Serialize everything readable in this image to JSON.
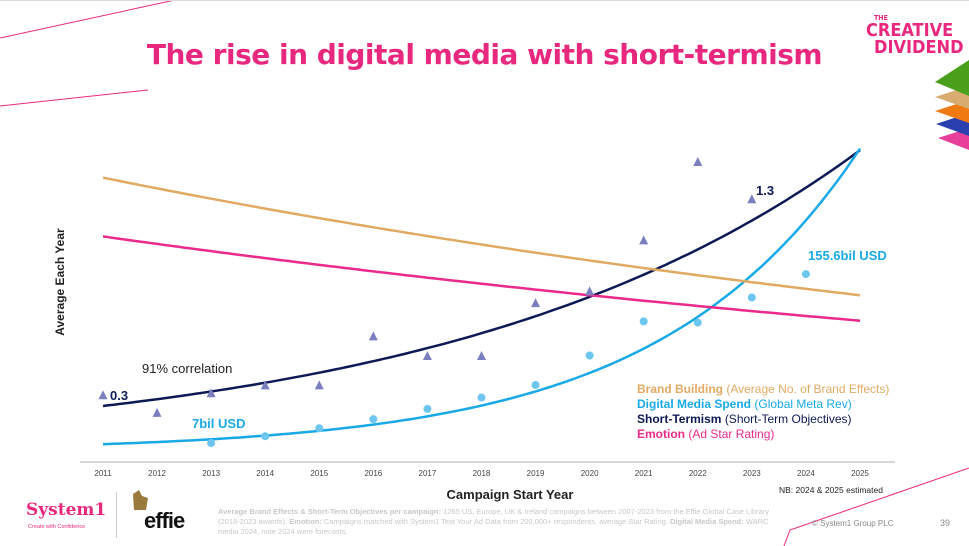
{
  "title": "The rise in digital media with short-termism",
  "brand": {
    "logo_top": "THE",
    "logo_line1": "CREATIVE",
    "logo_line2": "DIVIDEND"
  },
  "chart_data": {
    "type": "scatter",
    "xlabel": "Campaign Start Year",
    "ylabel": "Average Each Year",
    "x_ticks": [
      "2011",
      "2012",
      "2013",
      "2014",
      "2015",
      "2016",
      "2017",
      "2018",
      "2019",
      "2020",
      "2021",
      "2022",
      "2023",
      "2024",
      "2025"
    ],
    "xlim": [
      2011,
      2025
    ],
    "grid": false,
    "legend_placement": "bottom-right",
    "series": [
      {
        "name": "Short-Termism",
        "desc": "(Short-Term Objectives)",
        "color": "#0d1a55",
        "marker": "triangle",
        "marker_color": "#7b7fc0",
        "x": [
          2011,
          2012,
          2013,
          2014,
          2015,
          2016,
          2017,
          2018,
          2019,
          2020,
          2021,
          2022,
          2023
        ],
        "values": [
          0.3,
          0.21,
          0.31,
          0.35,
          0.35,
          0.6,
          0.5,
          0.5,
          0.77,
          0.83,
          1.09,
          1.49,
          1.3
        ],
        "trend": {
          "type": "exponential",
          "start": [
            2011,
            0.245
          ],
          "end": [
            2025,
            1.55
          ]
        }
      },
      {
        "name": "Digital Media Spend",
        "desc": "(Global Meta Rev)",
        "unit": "bil USD",
        "color": "#18a9e6",
        "marker": "circle",
        "marker_color": "#6cc6f0",
        "x": [
          2013,
          2014,
          2015,
          2016,
          2017,
          2018,
          2019,
          2020,
          2021,
          2022,
          2023,
          2024
        ],
        "values": [
          7,
          13,
          20,
          28,
          37,
          47,
          58,
          84,
          114,
          113,
          135,
          155.6
        ],
        "trend": {
          "type": "exponential",
          "start": [
            2011,
            6
          ],
          "end": [
            2025,
            266
          ]
        }
      },
      {
        "name": "Brand Building",
        "desc": "(Average No. of Brand Effects)",
        "color": "#e0aa62",
        "trend": {
          "type": "exponential",
          "start": [
            2011,
            1.41
          ],
          "end": [
            2025,
            0.81
          ]
        }
      },
      {
        "name": "Emotion",
        "desc": "(Ad Star Rating)",
        "color": "#ea2a8c",
        "trend": {
          "type": "exponential",
          "start": [
            2011,
            1.11
          ],
          "end": [
            2025,
            0.68
          ]
        }
      }
    ],
    "annotations": {
      "st_start": "0.3",
      "st_end": "1.3",
      "dm_start": "7bil USD",
      "dm_end": "155.6bil USD",
      "correlation": "91% correlation"
    },
    "note": "NB: 2024 & 2025 estimated"
  },
  "footer": {
    "system1": "System1",
    "system1_tagline": "Create with Confidence",
    "effie": "effie",
    "fn1_b": "Average Brand Effects & Short-Term Objectives per campaign:",
    "fn1": " 1265 US, Europe, UK & Ireland campaigns between 2007-2023 from the Effie Global Case Library (2018-2023 awards). ",
    "fn2_b": "Emotion:",
    "fn2": " Campaigns matched with System1 Test Your Ad Data from 200,000+ respondents, average Star Rating. ",
    "fn3_b": "Digital Media Spend:",
    "fn3": " WARC media 2024, note 2024 were forecasts.",
    "copyright": "© System1 Group PLC",
    "page": "39"
  }
}
